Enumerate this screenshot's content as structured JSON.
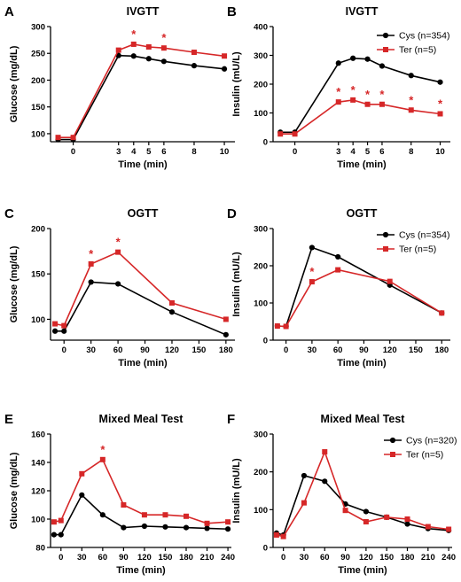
{
  "colors": {
    "cys": "#000000",
    "ter": "#d62728"
  },
  "chart_data": [
    {
      "type": "line",
      "letter": "A",
      "title": "IVGTT",
      "xlabel": "Time (min)",
      "ylabel": "Glucose (mg/dL)",
      "xlim": [
        -1.5,
        10.7
      ],
      "ylim": [
        85,
        300
      ],
      "xticks": [
        0,
        3,
        4,
        5,
        6,
        8,
        10
      ],
      "yticks": [
        100,
        150,
        200,
        250,
        300
      ],
      "series": [
        {
          "key": "cys",
          "x": [
            -1,
            0,
            3,
            4,
            5,
            6,
            8,
            10
          ],
          "y": [
            89,
            89,
            246,
            245,
            240,
            235,
            227,
            221
          ]
        },
        {
          "key": "ter",
          "x": [
            -1,
            0,
            3,
            4,
            5,
            6,
            8,
            10
          ],
          "y": [
            93,
            93,
            256,
            267,
            262,
            260,
            252,
            245
          ]
        }
      ],
      "annotations": [
        {
          "x": 4,
          "y": 267,
          "text": "*"
        },
        {
          "x": 6,
          "y": 260,
          "text": "*"
        }
      ]
    },
    {
      "type": "line",
      "letter": "B",
      "title": "IVGTT",
      "xlabel": "Time (min)",
      "ylabel": "Insulin (mU/L)",
      "xlim": [
        -1.5,
        10.7
      ],
      "ylim": [
        0,
        400
      ],
      "xticks": [
        0,
        3,
        4,
        5,
        6,
        8,
        10
      ],
      "yticks": [
        0,
        100,
        200,
        300,
        400
      ],
      "legend": [
        {
          "key": "cys",
          "label": "Cys (n=354)"
        },
        {
          "key": "ter",
          "label": "Ter (n=5)"
        }
      ],
      "series": [
        {
          "key": "cys",
          "x": [
            -1,
            0,
            3,
            4,
            5,
            6,
            8,
            10
          ],
          "y": [
            33,
            33,
            273,
            290,
            287,
            263,
            230,
            207
          ]
        },
        {
          "key": "ter",
          "x": [
            -1,
            0,
            3,
            4,
            5,
            6,
            8,
            10
          ],
          "y": [
            27,
            27,
            138,
            145,
            130,
            130,
            110,
            97
          ]
        }
      ],
      "annotations": [
        {
          "x": 3,
          "y": 138,
          "text": "*"
        },
        {
          "x": 4,
          "y": 145,
          "text": "*"
        },
        {
          "x": 5,
          "y": 130,
          "text": "*"
        },
        {
          "x": 6,
          "y": 130,
          "text": "*"
        },
        {
          "x": 8,
          "y": 110,
          "text": "*"
        },
        {
          "x": 10,
          "y": 97,
          "text": "*"
        }
      ]
    },
    {
      "type": "line",
      "letter": "C",
      "title": "OGTT",
      "xlabel": "Time (min)",
      "ylabel": "Glucose (mg/dL)",
      "xlim": [
        -15,
        190
      ],
      "ylim": [
        77,
        200
      ],
      "xticks": [
        0,
        30,
        60,
        90,
        120,
        150,
        180
      ],
      "yticks": [
        100,
        150,
        200
      ],
      "series": [
        {
          "key": "cys",
          "x": [
            -10,
            0,
            30,
            60,
            120,
            180
          ],
          "y": [
            87,
            87,
            141,
            139,
            108,
            83
          ]
        },
        {
          "key": "ter",
          "x": [
            -10,
            0,
            30,
            60,
            120,
            180
          ],
          "y": [
            95,
            93,
            161,
            174,
            118,
            100
          ]
        }
      ],
      "annotations": [
        {
          "x": 30,
          "y": 161,
          "text": "*"
        },
        {
          "x": 60,
          "y": 174,
          "text": "*"
        }
      ]
    },
    {
      "type": "line",
      "letter": "D",
      "title": "OGTT",
      "xlabel": "Time (min)",
      "ylabel": "Insulin (mU/L)",
      "xlim": [
        -15,
        190
      ],
      "ylim": [
        0,
        300
      ],
      "xticks": [
        0,
        30,
        60,
        90,
        120,
        150,
        180
      ],
      "yticks": [
        0,
        100,
        200,
        300
      ],
      "legend": [
        {
          "key": "cys",
          "label": "Cys (n=354)"
        },
        {
          "key": "ter",
          "label": "Ter (n=5)"
        }
      ],
      "series": [
        {
          "key": "cys",
          "x": [
            -10,
            0,
            30,
            60,
            120,
            180
          ],
          "y": [
            38,
            37,
            249,
            224,
            148,
            73
          ]
        },
        {
          "key": "ter",
          "x": [
            -10,
            0,
            30,
            60,
            120,
            180
          ],
          "y": [
            38,
            37,
            157,
            189,
            158,
            73
          ]
        }
      ],
      "annotations": [
        {
          "x": 30,
          "y": 157,
          "text": "*"
        }
      ]
    },
    {
      "type": "line",
      "letter": "E",
      "title": "Mixed Meal Test",
      "xlabel": "Time (min)",
      "ylabel": "Glucose (mg/dL)",
      "xlim": [
        -15,
        245
      ],
      "ylim": [
        80,
        160
      ],
      "xticks": [
        0,
        30,
        60,
        90,
        120,
        150,
        180,
        210,
        240
      ],
      "yticks": [
        80,
        100,
        120,
        140,
        160
      ],
      "series": [
        {
          "key": "cys",
          "x": [
            -10,
            0,
            30,
            60,
            90,
            120,
            150,
            180,
            210,
            240
          ],
          "y": [
            89,
            89,
            117,
            103,
            94,
            95,
            94.5,
            94,
            93.5,
            93
          ]
        },
        {
          "key": "ter",
          "x": [
            -10,
            0,
            30,
            60,
            90,
            120,
            150,
            180,
            210,
            240
          ],
          "y": [
            98,
            99,
            132,
            142,
            110,
            103,
            103,
            102,
            97,
            98
          ]
        }
      ],
      "annotations": [
        {
          "x": 60,
          "y": 142,
          "text": "*"
        }
      ]
    },
    {
      "type": "line",
      "letter": "F",
      "title": "Mixed Meal Test",
      "xlabel": "Time (min)",
      "ylabel": "Insulin (mU/L)",
      "xlim": [
        -15,
        245
      ],
      "ylim": [
        0,
        300
      ],
      "xticks": [
        0,
        30,
        60,
        90,
        120,
        150,
        180,
        210,
        240
      ],
      "yticks": [
        0,
        100,
        200,
        300
      ],
      "legend": [
        {
          "key": "cys",
          "label": "Cys (n=320)"
        },
        {
          "key": "ter",
          "label": "Ter (n=5)"
        }
      ],
      "series": [
        {
          "key": "cys",
          "x": [
            -10,
            0,
            30,
            60,
            90,
            120,
            150,
            180,
            210,
            240
          ],
          "y": [
            38,
            33,
            190,
            175,
            115,
            95,
            80,
            62,
            50,
            45
          ]
        },
        {
          "key": "ter",
          "x": [
            -10,
            0,
            30,
            60,
            90,
            120,
            150,
            180,
            210,
            240
          ],
          "y": [
            33,
            29,
            118,
            253,
            98,
            68,
            80,
            75,
            55,
            48
          ]
        }
      ],
      "annotations": []
    }
  ]
}
